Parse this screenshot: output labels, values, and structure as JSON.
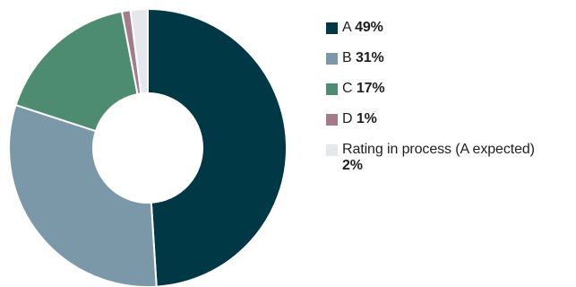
{
  "chart_data": {
    "type": "pie",
    "donut": true,
    "slices": [
      {
        "label": "A",
        "value": 49,
        "value_label": "49%",
        "color": "#003846"
      },
      {
        "label": "B",
        "value": 31,
        "value_label": "31%",
        "color": "#7a98a8"
      },
      {
        "label": "C",
        "value": 17,
        "value_label": "17%",
        "color": "#4e8c72"
      },
      {
        "label": "D",
        "value": 1,
        "value_label": "1%",
        "color": "#a47b88"
      },
      {
        "label": "Rating in process (A expected)",
        "value": 2,
        "value_label": "2%",
        "color": "#e4e8ec"
      }
    ],
    "legend_position": "right"
  }
}
